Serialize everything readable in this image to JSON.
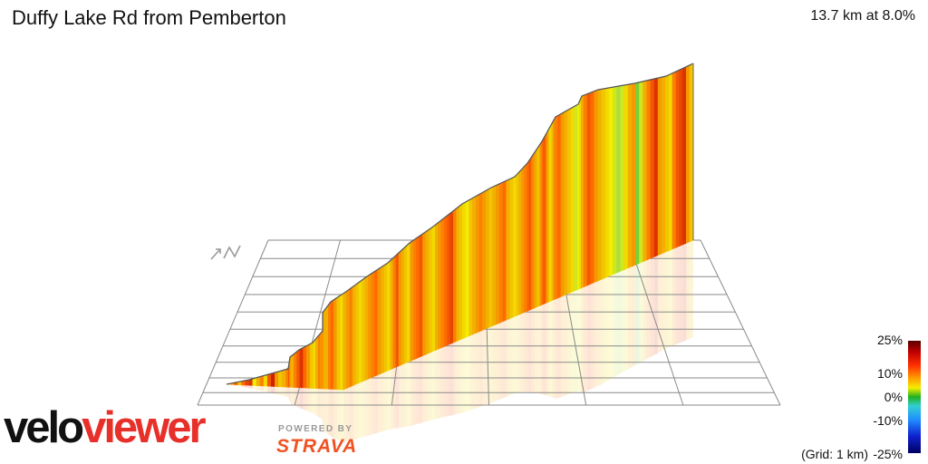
{
  "header": {
    "title": "Duffy Lake Rd from Pemberton",
    "stats": "13.7 km at 8.0%"
  },
  "legend": {
    "labels": [
      "25%",
      "10%",
      "0%",
      "-10%",
      "-25%"
    ],
    "grid_note": "(Grid: 1 km)"
  },
  "branding": {
    "velo": "velo",
    "viewer": "viewer",
    "powered_by": "POWERED BY",
    "strava": "STRAVA"
  },
  "colors": {
    "brand_red": "#e8302a",
    "strava_orange": "#f05222",
    "grid": "#8a8a8a"
  },
  "icons": [
    "north-arrow-icon"
  ],
  "chart_data": {
    "type": "area",
    "distance_km": 13.7,
    "avg_gradient_pct": 8.0,
    "gradient_scale_pct": [
      -25,
      -10,
      0,
      10,
      25
    ],
    "grid_km": 1,
    "gradient_colors": {
      "25": "#5a0000",
      "10": "#ff6a00",
      "5": "#f3ee00",
      "0": "#20b020",
      "-10": "#30d0d0",
      "-25": "#000060"
    },
    "segment_gradients_pct": [
      6,
      9,
      12,
      7,
      11,
      13,
      14,
      5,
      8,
      10,
      6,
      12,
      15,
      9,
      7,
      8,
      10,
      11,
      13,
      9,
      8,
      10,
      12,
      14,
      11,
      9,
      7,
      6,
      8,
      10,
      9,
      11,
      12,
      13,
      10,
      9,
      8,
      8,
      10,
      11,
      9,
      7,
      6,
      8,
      9,
      10,
      8,
      7,
      6,
      7,
      8,
      9,
      10,
      11,
      9,
      8,
      7,
      6,
      8,
      10,
      12,
      9,
      8,
      7,
      6,
      9,
      10,
      11,
      12,
      9,
      8,
      7,
      6,
      8,
      9,
      10,
      11,
      12,
      13,
      10,
      8,
      7,
      6,
      5,
      7,
      8,
      9,
      10,
      9,
      8,
      7,
      8,
      9,
      10,
      11,
      8,
      7,
      6,
      7,
      8,
      9,
      10,
      11,
      12,
      10,
      9,
      8,
      7,
      9,
      11,
      12,
      10,
      8,
      6,
      7,
      9,
      10,
      11,
      9,
      8,
      7,
      6,
      4,
      5,
      6,
      8,
      10,
      12,
      11,
      9,
      8,
      7,
      6,
      5,
      4,
      3,
      4,
      6,
      8,
      9,
      2,
      4,
      8,
      10,
      12,
      14,
      9,
      8,
      7,
      6,
      10,
      12,
      13,
      14,
      9,
      7
    ]
  }
}
